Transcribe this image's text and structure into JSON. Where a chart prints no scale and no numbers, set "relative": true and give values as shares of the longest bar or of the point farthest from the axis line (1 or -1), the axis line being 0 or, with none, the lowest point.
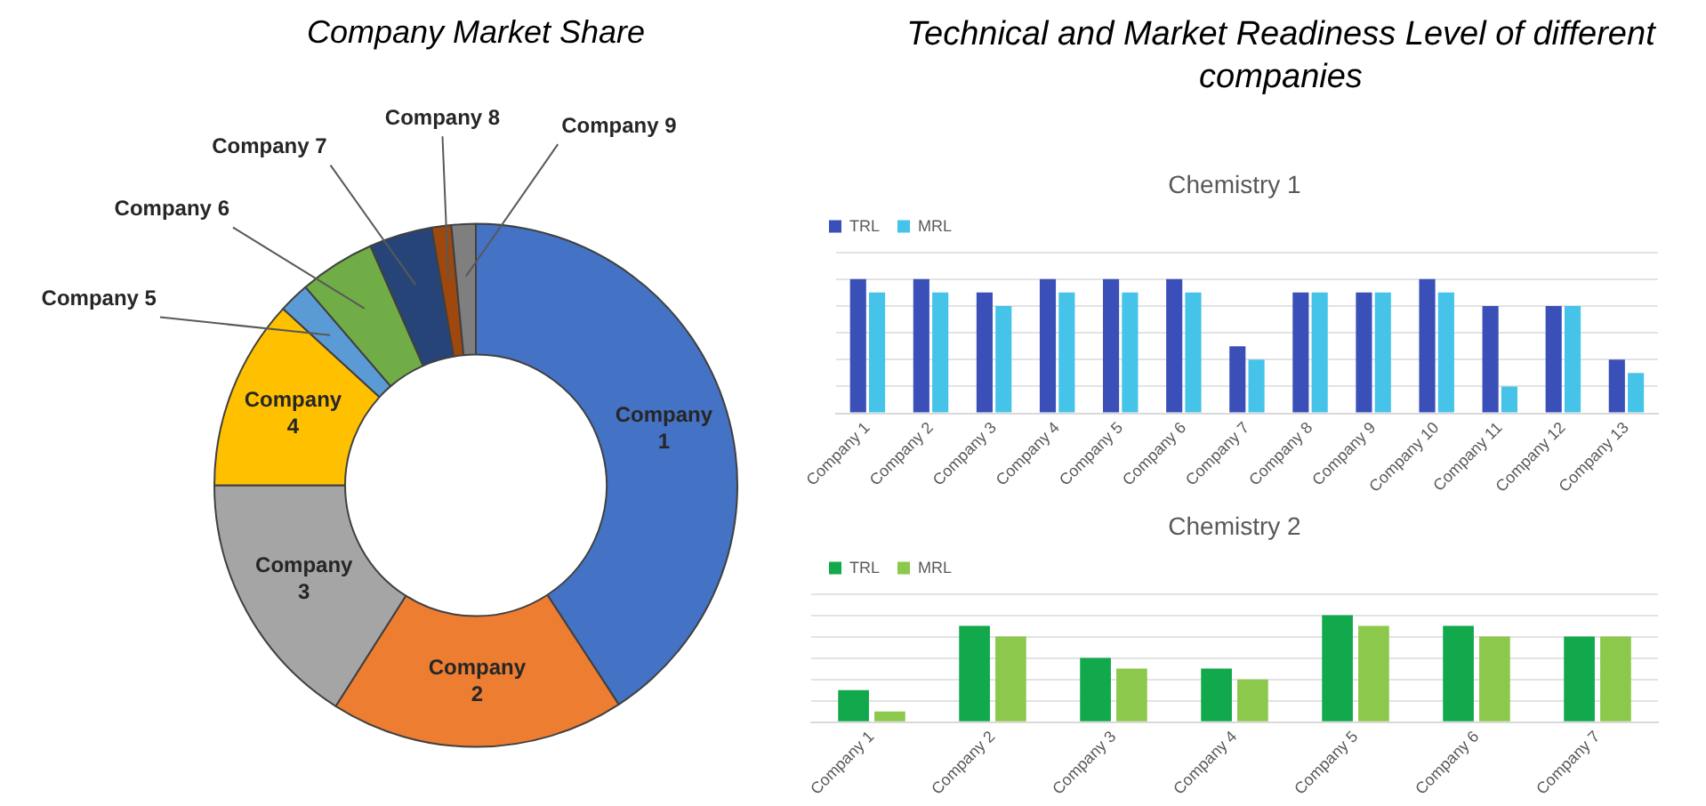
{
  "chart_data": [
    {
      "type": "donut",
      "title": "Company Market Share",
      "categories": [
        "Company 1",
        "Company 2",
        "Company 3",
        "Company 4",
        "Company 5",
        "Company 6",
        "Company 7",
        "Company 8",
        "Company 9"
      ],
      "values": [
        40.8,
        18.2,
        16,
        11.8,
        1.9,
        4.7,
        3.9,
        1.2,
        1.5
      ],
      "colors": [
        "#4472c4",
        "#ed7d31",
        "#a5a5a5",
        "#ffc000",
        "#5b9bd5",
        "#70ad47",
        "#264478",
        "#9e480e",
        "#7f7f7f"
      ]
    },
    {
      "type": "other",
      "title": "Technical and Market Readiness Level of different companies"
    },
    {
      "type": "bar",
      "title": "Chemistry 1",
      "categories": [
        "Company 1",
        "Company 2",
        "Company 3",
        "Company 4",
        "Company 5",
        "Company 6",
        "Company 7",
        "Company 8",
        "Company 9",
        "Company 10",
        "Company 11",
        "Company 12",
        "Company 13"
      ],
      "relative": true,
      "grid": "y",
      "legend": "top left",
      "series": [
        {
          "name": "TRL",
          "color": "#3b4fb8",
          "values": [
            1,
            1,
            0.9,
            1,
            1,
            1,
            0.5,
            0.9,
            0.9,
            1,
            0.8,
            0.8,
            0.4
          ]
        },
        {
          "name": "MRL",
          "color": "#45c3e8",
          "values": [
            0.9,
            0.9,
            0.8,
            0.9,
            0.9,
            0.9,
            0.4,
            0.9,
            0.9,
            0.9,
            0.2,
            0.8,
            0.3
          ]
        }
      ]
    },
    {
      "type": "bar",
      "title": "Chemistry 2",
      "categories": [
        "Company 1",
        "Company 2",
        "Company 3",
        "Company 4",
        "Company 5",
        "Company 6",
        "Company 7"
      ],
      "relative": true,
      "grid": "y",
      "legend": "top left",
      "series": [
        {
          "name": "TRL",
          "color": "#12a84c",
          "values": [
            0.3,
            0.9,
            0.6,
            0.5,
            1,
            0.9,
            0.8
          ]
        },
        {
          "name": "MRL",
          "color": "#8cc84b",
          "values": [
            0.1,
            0.8,
            0.5,
            0.4,
            0.9,
            0.8,
            0.8
          ]
        }
      ]
    }
  ]
}
